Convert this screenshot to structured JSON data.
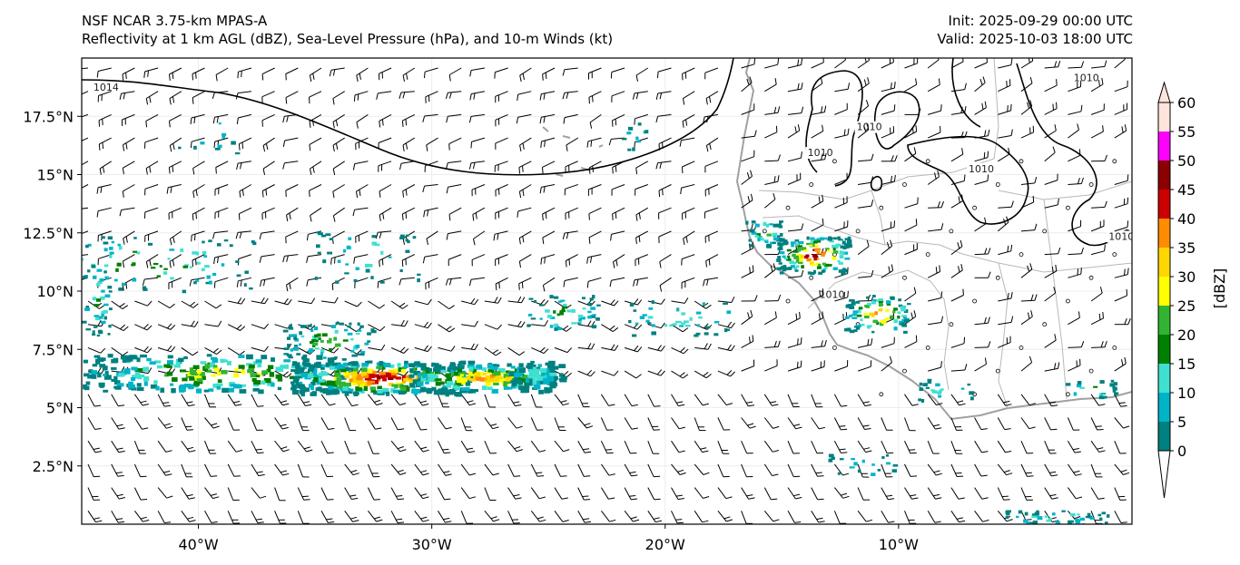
{
  "header": {
    "model": "NSF NCAR 3.75-km MPAS-A",
    "fields": "Reflectivity at 1 km AGL (dBZ), Sea-Level Pressure (hPa), and 10-m Winds (kt)",
    "init": "Init: 2025-09-29 00:00 UTC",
    "valid": "Valid: 2025-10-03 18:00 UTC"
  },
  "map": {
    "lon_range": [
      -45,
      0
    ],
    "lat_range": [
      0,
      20
    ],
    "lat_ticks": [
      {
        "value": 17.5,
        "label": "17.5°N"
      },
      {
        "value": 15,
        "label": "15°N"
      },
      {
        "value": 12.5,
        "label": "12.5°N"
      },
      {
        "value": 10,
        "label": "10°N"
      },
      {
        "value": 7.5,
        "label": "7.5°N"
      },
      {
        "value": 5,
        "label": "5°N"
      },
      {
        "value": 2.5,
        "label": "2.5°N"
      }
    ],
    "lon_ticks": [
      {
        "value": -40,
        "label": "40°W"
      },
      {
        "value": -30,
        "label": "30°W"
      },
      {
        "value": -20,
        "label": "20°W"
      },
      {
        "value": -10,
        "label": "10°W"
      }
    ],
    "isobar_labels": [
      {
        "text": "1014",
        "lon": -44.5,
        "lat": 18.6
      },
      {
        "text": "1010",
        "lon": -13.9,
        "lat": 15.8
      },
      {
        "text": "1010",
        "lon": -11.8,
        "lat": 16.9
      },
      {
        "text": "1010",
        "lon": -7.0,
        "lat": 15.1
      },
      {
        "text": "1010",
        "lon": -2.5,
        "lat": 19.0
      },
      {
        "text": "1010",
        "lon": -1.0,
        "lat": 12.2
      },
      {
        "text": "1010",
        "lon": -13.4,
        "lat": 9.7
      }
    ]
  },
  "colorbar": {
    "unit_label": "[dBZ]",
    "levels": [
      0,
      5,
      10,
      15,
      20,
      25,
      30,
      35,
      40,
      45,
      50,
      55,
      60
    ],
    "colors": [
      "#008080",
      "#00b4c8",
      "#40e0d0",
      "#008000",
      "#32b432",
      "#ffff00",
      "#ffd700",
      "#ff8c00",
      "#cc0000",
      "#8b0000",
      "#ff00ff",
      "#ffe4dc"
    ]
  }
}
